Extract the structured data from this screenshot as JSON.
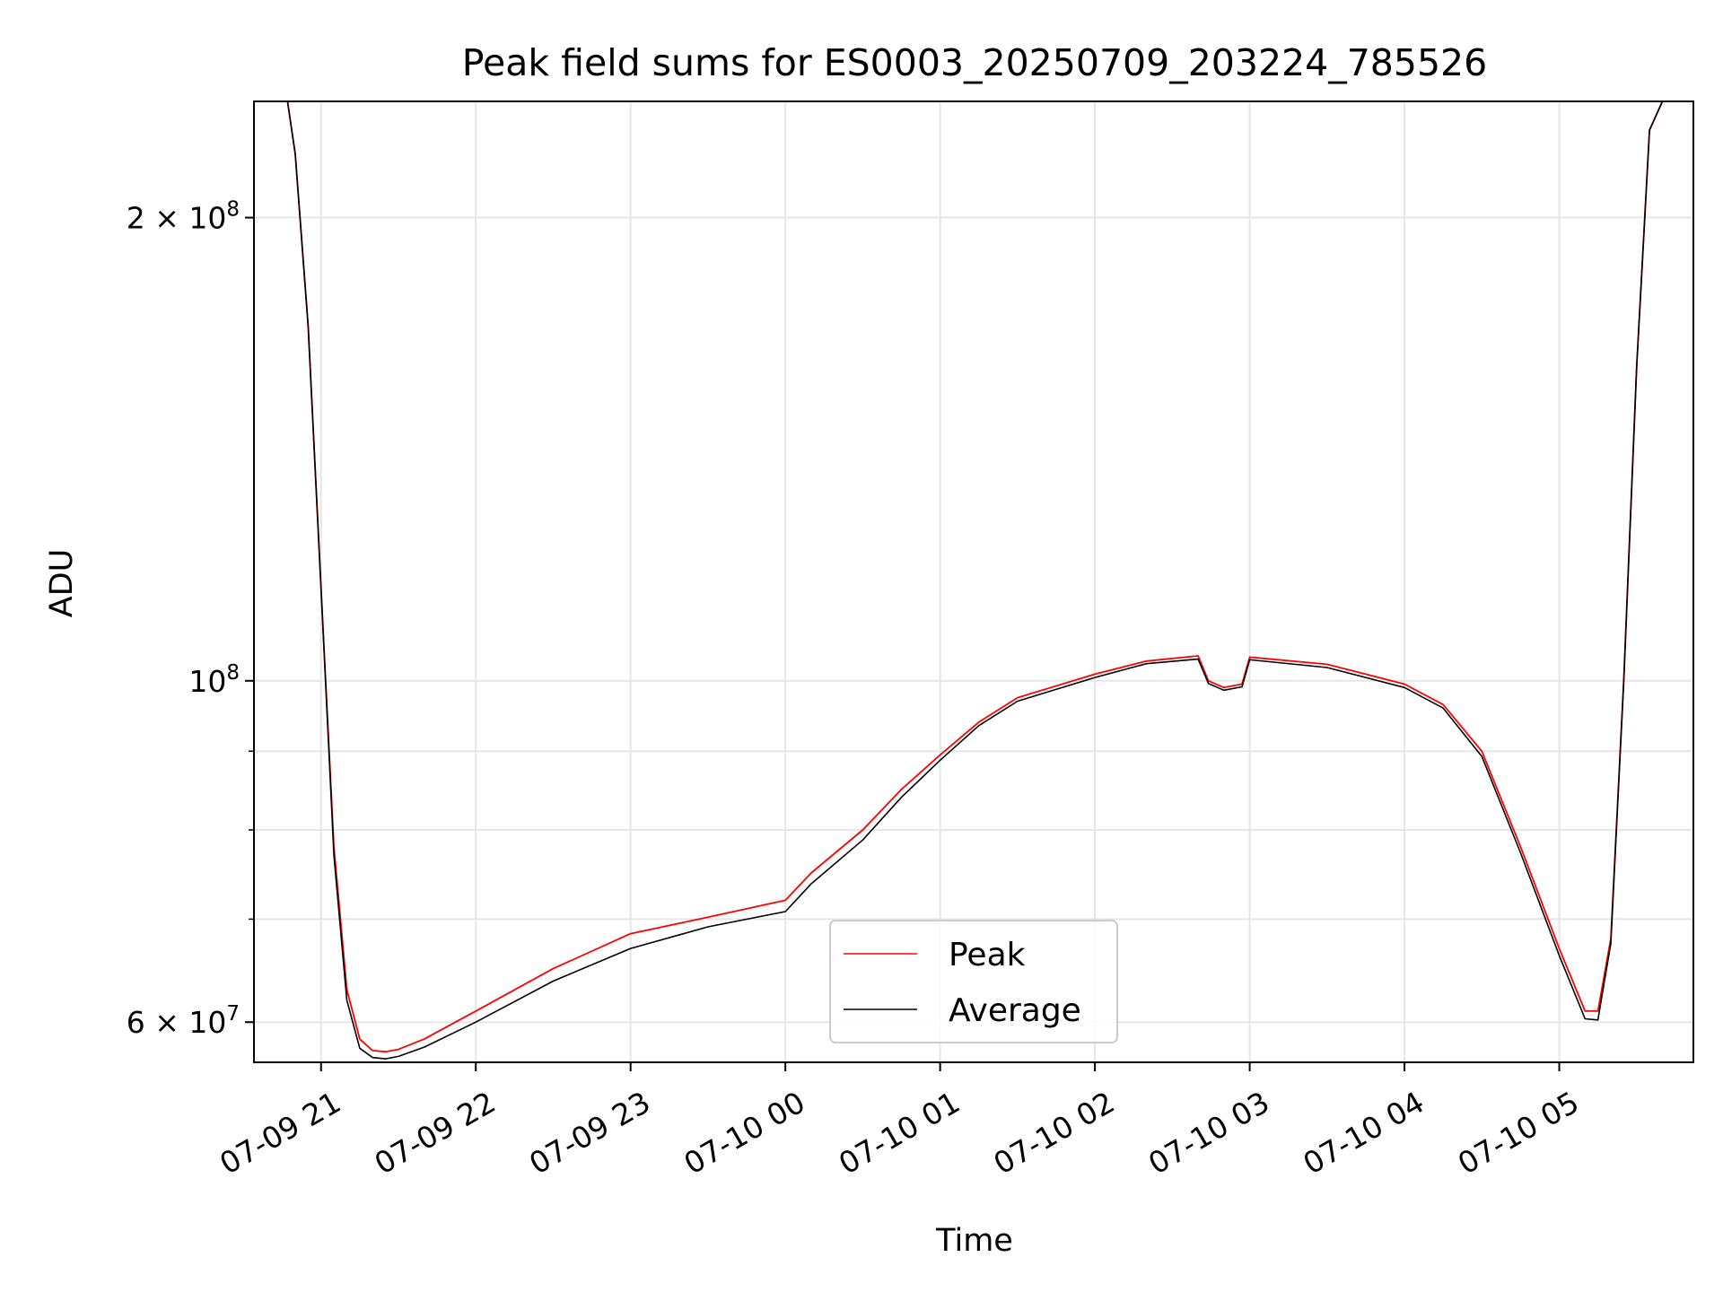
{
  "chart_data": {
    "type": "line",
    "title": "Peak field sums for ES0003_20250709_203224_785526",
    "xlabel": "Time",
    "ylabel": "ADU",
    "y_scale": "log",
    "x_unit": "datetime",
    "xlim": [
      "2025-07-09 20:34",
      "2025-07-10 05:52"
    ],
    "ylim": [
      56500000,
      238000000
    ],
    "x_ticks": [
      {
        "value": "2025-07-09 21:00",
        "label": "07-09 21"
      },
      {
        "value": "2025-07-09 22:00",
        "label": "07-09 22"
      },
      {
        "value": "2025-07-09 23:00",
        "label": "07-09 23"
      },
      {
        "value": "2025-07-10 00:00",
        "label": "07-10 00"
      },
      {
        "value": "2025-07-10 01:00",
        "label": "07-10 01"
      },
      {
        "value": "2025-07-10 02:00",
        "label": "07-10 02"
      },
      {
        "value": "2025-07-10 03:00",
        "label": "07-10 03"
      },
      {
        "value": "2025-07-10 04:00",
        "label": "07-10 04"
      },
      {
        "value": "2025-07-10 05:00",
        "label": "07-10 05"
      }
    ],
    "y_ticks_major": [
      {
        "value": 200000000,
        "label_base": "2 × 10",
        "label_exp": "8"
      },
      {
        "value": 100000000,
        "label_base": "10",
        "label_exp": "8"
      },
      {
        "value": 60000000,
        "label_base": "6 × 10",
        "label_exp": "7"
      }
    ],
    "y_ticks_minor": [
      70000000,
      80000000,
      90000000
    ],
    "grid": true,
    "legend": {
      "placement": "lower center"
    },
    "series": [
      {
        "name": "Peak",
        "color": "#ff0000",
        "x": [
          "2025-07-09 20:47",
          "2025-07-09 20:50",
          "2025-07-09 20:55",
          "2025-07-09 21:00",
          "2025-07-09 21:05",
          "2025-07-09 21:10",
          "2025-07-09 21:15",
          "2025-07-09 21:20",
          "2025-07-09 21:25",
          "2025-07-09 21:30",
          "2025-07-09 21:40",
          "2025-07-09 22:00",
          "2025-07-09 22:30",
          "2025-07-09 23:00",
          "2025-07-09 23:30",
          "2025-07-10 00:00",
          "2025-07-10 00:10",
          "2025-07-10 00:30",
          "2025-07-10 00:45",
          "2025-07-10 01:00",
          "2025-07-10 01:15",
          "2025-07-10 01:30",
          "2025-07-10 02:00",
          "2025-07-10 02:20",
          "2025-07-10 02:40",
          "2025-07-10 02:44",
          "2025-07-10 02:50",
          "2025-07-10 02:57",
          "2025-07-10 03:00",
          "2025-07-10 03:30",
          "2025-07-10 04:00",
          "2025-07-10 04:15",
          "2025-07-10 04:30",
          "2025-07-10 04:45",
          "2025-07-10 05:00",
          "2025-07-10 05:10",
          "2025-07-10 05:15",
          "2025-07-10 05:20",
          "2025-07-10 05:25",
          "2025-07-10 05:30",
          "2025-07-10 05:35",
          "2025-07-10 05:40"
        ],
        "y": [
          238000000,
          220000000,
          170000000,
          115000000,
          78000000,
          63000000,
          58500000,
          57500000,
          57400000,
          57600000,
          58500000,
          61000000,
          65000000,
          68500000,
          70200000,
          72000000,
          75000000,
          80000000,
          85000000,
          89500000,
          94000000,
          97500000,
          101000000,
          103000000,
          103800000,
          100000000,
          99000000,
          99500000,
          103600000,
          102500000,
          99500000,
          96500000,
          90000000,
          78000000,
          67000000,
          61000000,
          61000000,
          68000000,
          100000000,
          160000000,
          228000000,
          238000000
        ]
      },
      {
        "name": "Average",
        "color": "#000000",
        "x": [
          "2025-07-09 20:47",
          "2025-07-09 20:50",
          "2025-07-09 20:55",
          "2025-07-09 21:00",
          "2025-07-09 21:05",
          "2025-07-09 21:10",
          "2025-07-09 21:15",
          "2025-07-09 21:20",
          "2025-07-09 21:25",
          "2025-07-09 21:30",
          "2025-07-09 21:40",
          "2025-07-09 22:00",
          "2025-07-09 22:30",
          "2025-07-09 23:00",
          "2025-07-09 23:30",
          "2025-07-10 00:00",
          "2025-07-10 00:10",
          "2025-07-10 00:30",
          "2025-07-10 00:45",
          "2025-07-10 01:00",
          "2025-07-10 01:15",
          "2025-07-10 01:30",
          "2025-07-10 02:00",
          "2025-07-10 02:20",
          "2025-07-10 02:40",
          "2025-07-10 02:44",
          "2025-07-10 02:50",
          "2025-07-10 02:57",
          "2025-07-10 03:00",
          "2025-07-10 03:30",
          "2025-07-10 04:00",
          "2025-07-10 04:15",
          "2025-07-10 04:30",
          "2025-07-10 04:45",
          "2025-07-10 05:00",
          "2025-07-10 05:10",
          "2025-07-10 05:15",
          "2025-07-10 05:20",
          "2025-07-10 05:25",
          "2025-07-10 05:30",
          "2025-07-10 05:35",
          "2025-07-10 05:40"
        ],
        "y": [
          238000000,
          220000000,
          170000000,
          115000000,
          77000000,
          62000000,
          57700000,
          56900000,
          56800000,
          57000000,
          57800000,
          60000000,
          63800000,
          67000000,
          69200000,
          70800000,
          73800000,
          78800000,
          84000000,
          88800000,
          93500000,
          97000000,
          100500000,
          102600000,
          103300000,
          99600000,
          98600000,
          99100000,
          103200000,
          102000000,
          99000000,
          96000000,
          89300000,
          77300000,
          66300000,
          60300000,
          60200000,
          67500000,
          100000000,
          160000000,
          228000000,
          238000000
        ]
      }
    ]
  }
}
